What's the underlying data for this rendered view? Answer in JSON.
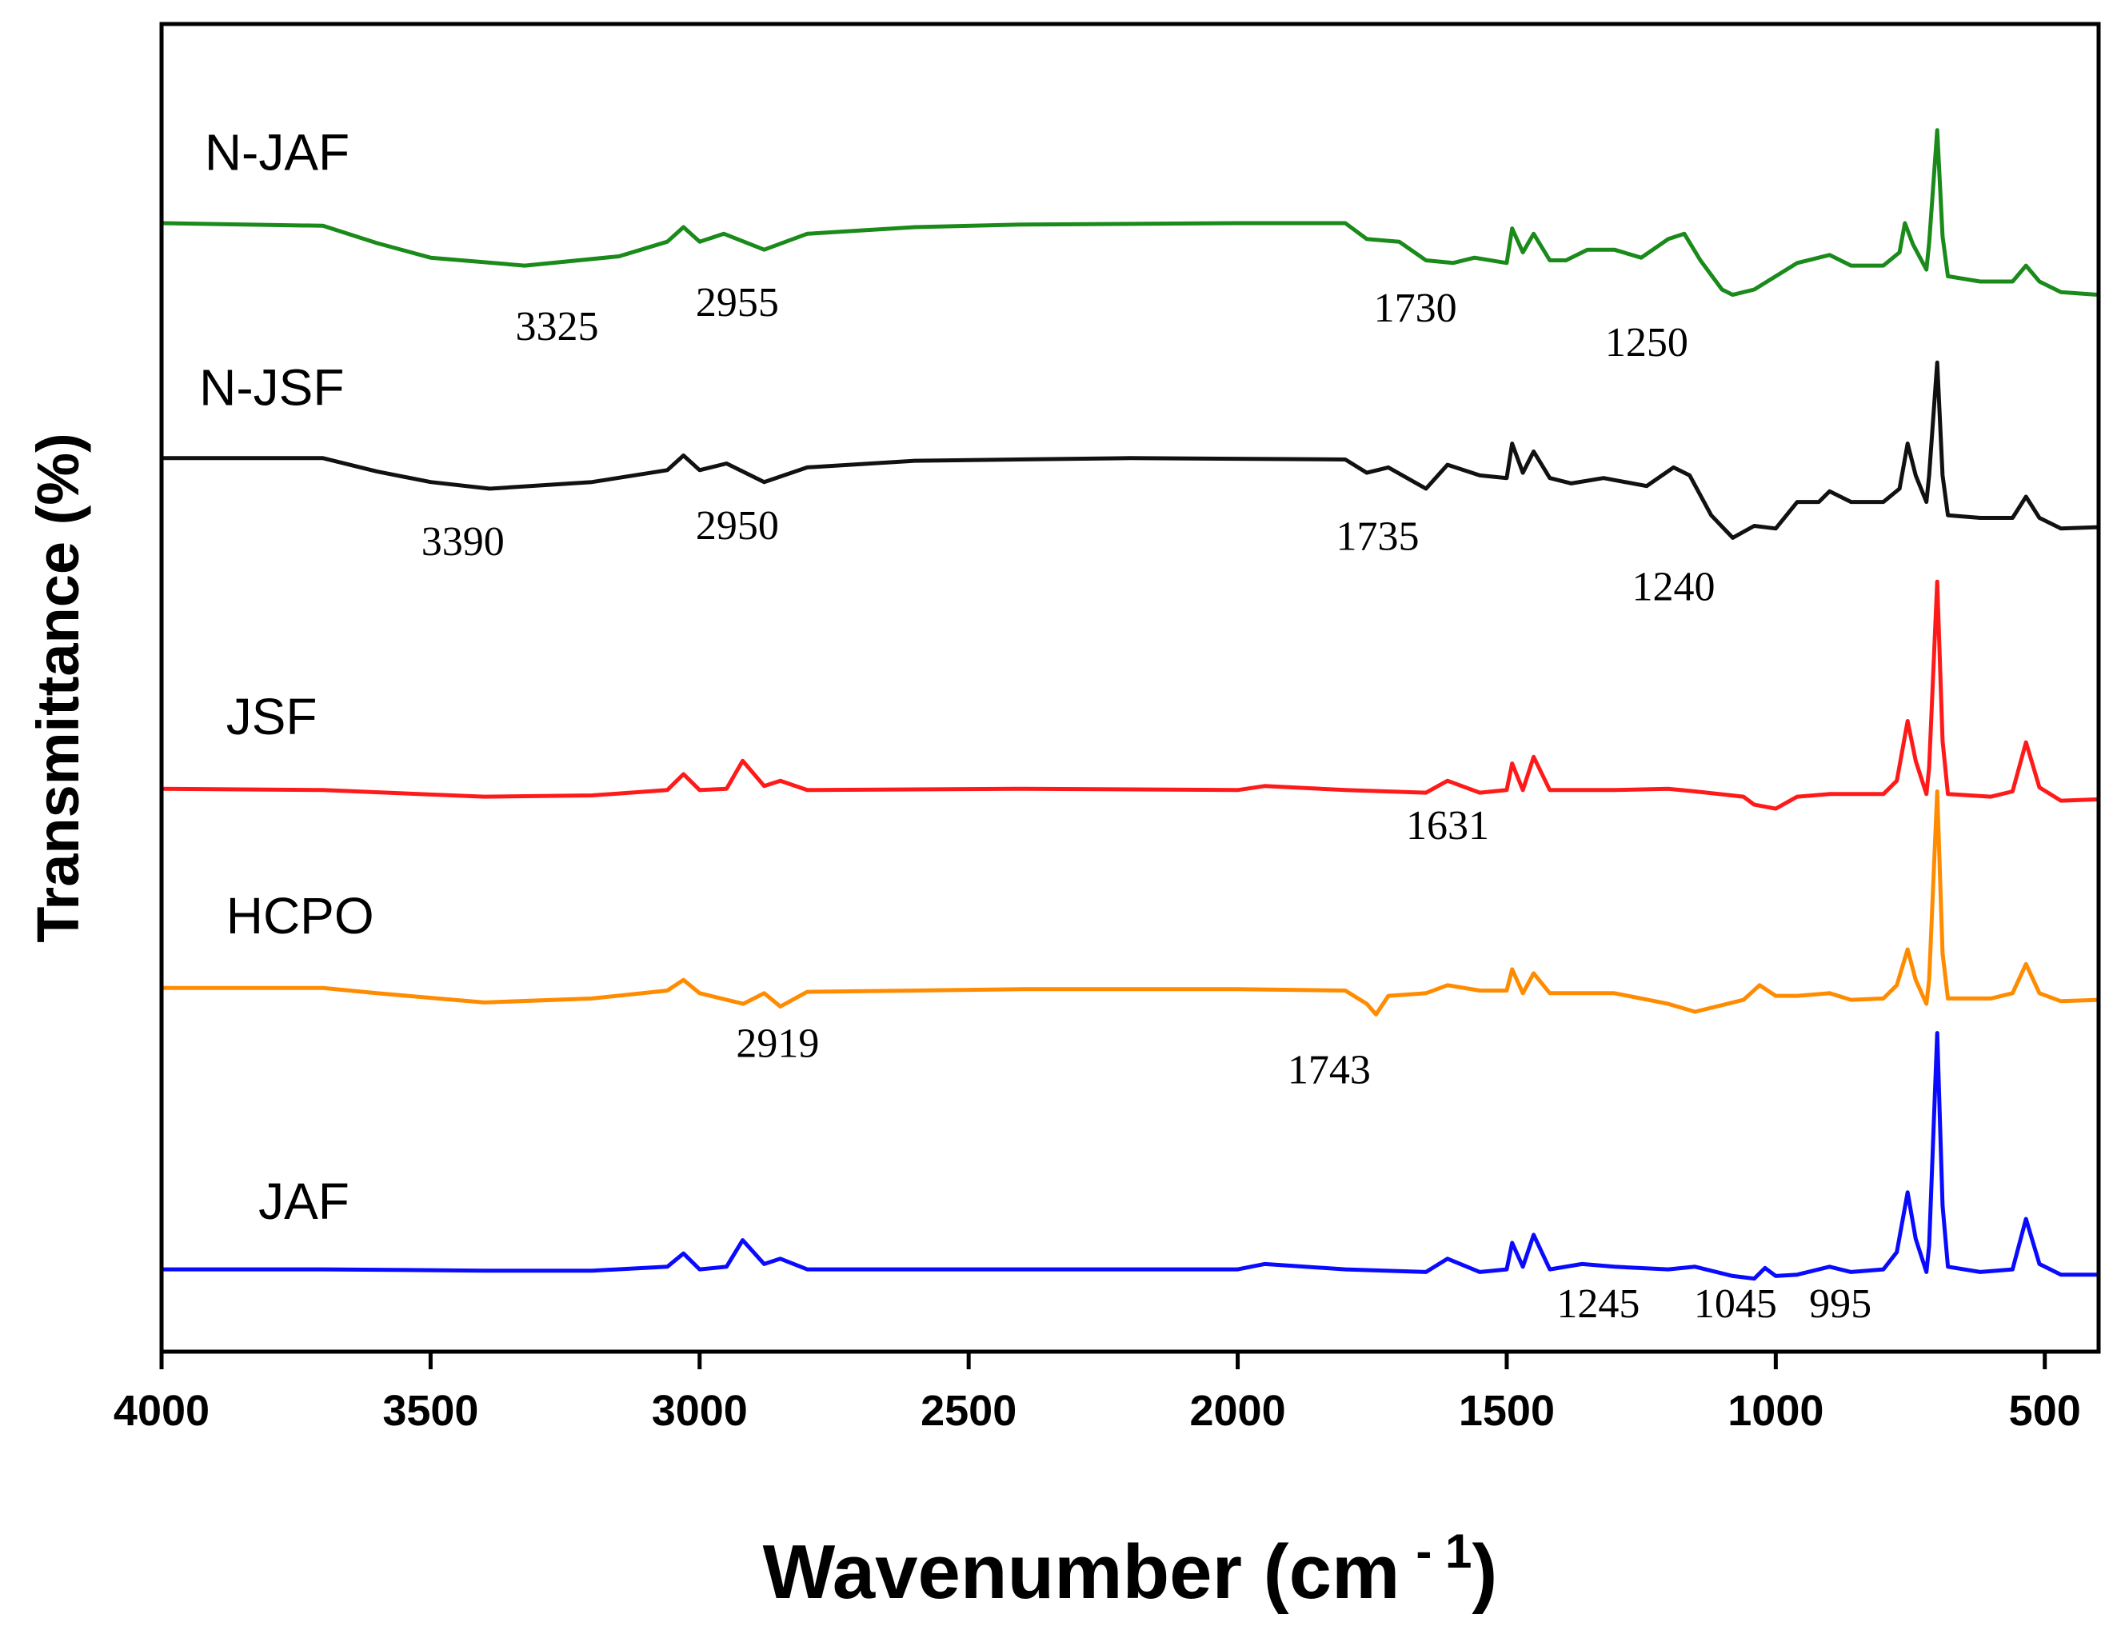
{
  "chart_data": {
    "type": "line",
    "title": "",
    "xlabel": "Wavenumber (cm",
    "xlabel_superscript": "- 1",
    "xlabel_close": ")",
    "ylabel": "Transmittance (%)",
    "xlim": [
      4000,
      400
    ],
    "x_reversed": true,
    "xticks": [
      4000,
      3500,
      3000,
      2500,
      2000,
      1500,
      1000,
      500
    ],
    "yticks_visible": false,
    "grid": false,
    "legend": "inline labels",
    "series": [
      {
        "name": "N-JAF",
        "color": "#1a8a1a",
        "baseline": 0.845,
        "points": [
          [
            4000,
            0.85
          ],
          [
            3700,
            0.848
          ],
          [
            3600,
            0.835
          ],
          [
            3500,
            0.824
          ],
          [
            3325,
            0.818
          ],
          [
            3150,
            0.825
          ],
          [
            3060,
            0.836
          ],
          [
            3030,
            0.847
          ],
          [
            3000,
            0.836
          ],
          [
            2955,
            0.842
          ],
          [
            2880,
            0.83
          ],
          [
            2800,
            0.842
          ],
          [
            2600,
            0.847
          ],
          [
            2400,
            0.849
          ],
          [
            2000,
            0.85
          ],
          [
            1800,
            0.85
          ],
          [
            1760,
            0.838
          ],
          [
            1700,
            0.836
          ],
          [
            1650,
            0.822
          ],
          [
            1600,
            0.82
          ],
          [
            1560,
            0.824
          ],
          [
            1500,
            0.82
          ],
          [
            1490,
            0.846
          ],
          [
            1470,
            0.828
          ],
          [
            1450,
            0.842
          ],
          [
            1420,
            0.822
          ],
          [
            1390,
            0.822
          ],
          [
            1350,
            0.83
          ],
          [
            1300,
            0.83
          ],
          [
            1250,
            0.824
          ],
          [
            1200,
            0.838
          ],
          [
            1170,
            0.842
          ],
          [
            1140,
            0.822
          ],
          [
            1100,
            0.8
          ],
          [
            1080,
            0.796
          ],
          [
            1040,
            0.8
          ],
          [
            1000,
            0.81
          ],
          [
            960,
            0.82
          ],
          [
            900,
            0.826
          ],
          [
            860,
            0.818
          ],
          [
            800,
            0.818
          ],
          [
            770,
            0.828
          ],
          [
            760,
            0.85
          ],
          [
            745,
            0.834
          ],
          [
            720,
            0.815
          ],
          [
            715,
            0.835
          ],
          [
            700,
            0.92
          ],
          [
            690,
            0.84
          ],
          [
            680,
            0.81
          ],
          [
            620,
            0.806
          ],
          [
            560,
            0.806
          ],
          [
            535,
            0.818
          ],
          [
            510,
            0.806
          ],
          [
            470,
            0.798
          ],
          [
            400,
            0.796
          ]
        ]
      },
      {
        "name": "N-JSF",
        "color": "#111111",
        "baseline": 0.668,
        "points": [
          [
            4000,
            0.673
          ],
          [
            3700,
            0.673
          ],
          [
            3600,
            0.663
          ],
          [
            3500,
            0.655
          ],
          [
            3390,
            0.65
          ],
          [
            3200,
            0.655
          ],
          [
            3060,
            0.664
          ],
          [
            3030,
            0.675
          ],
          [
            3000,
            0.664
          ],
          [
            2950,
            0.669
          ],
          [
            2880,
            0.655
          ],
          [
            2800,
            0.666
          ],
          [
            2600,
            0.671
          ],
          [
            2200,
            0.673
          ],
          [
            1800,
            0.672
          ],
          [
            1760,
            0.662
          ],
          [
            1720,
            0.666
          ],
          [
            1650,
            0.65
          ],
          [
            1610,
            0.668
          ],
          [
            1550,
            0.66
          ],
          [
            1500,
            0.658
          ],
          [
            1490,
            0.684
          ],
          [
            1470,
            0.662
          ],
          [
            1450,
            0.678
          ],
          [
            1420,
            0.658
          ],
          [
            1380,
            0.654
          ],
          [
            1320,
            0.658
          ],
          [
            1240,
            0.652
          ],
          [
            1190,
            0.666
          ],
          [
            1160,
            0.66
          ],
          [
            1120,
            0.63
          ],
          [
            1080,
            0.613
          ],
          [
            1040,
            0.622
          ],
          [
            1000,
            0.62
          ],
          [
            960,
            0.64
          ],
          [
            920,
            0.64
          ],
          [
            900,
            0.648
          ],
          [
            860,
            0.64
          ],
          [
            800,
            0.64
          ],
          [
            770,
            0.65
          ],
          [
            755,
            0.684
          ],
          [
            740,
            0.66
          ],
          [
            720,
            0.64
          ],
          [
            715,
            0.66
          ],
          [
            700,
            0.745
          ],
          [
            690,
            0.66
          ],
          [
            680,
            0.63
          ],
          [
            620,
            0.628
          ],
          [
            560,
            0.628
          ],
          [
            535,
            0.644
          ],
          [
            510,
            0.628
          ],
          [
            470,
            0.62
          ],
          [
            400,
            0.621
          ]
        ]
      },
      {
        "name": "JSF",
        "color": "#ff1a1a",
        "baseline": 0.423,
        "points": [
          [
            4000,
            0.424
          ],
          [
            3700,
            0.423
          ],
          [
            3400,
            0.418
          ],
          [
            3200,
            0.419
          ],
          [
            3060,
            0.423
          ],
          [
            3030,
            0.435
          ],
          [
            3000,
            0.423
          ],
          [
            2950,
            0.424
          ],
          [
            2920,
            0.445
          ],
          [
            2880,
            0.426
          ],
          [
            2850,
            0.43
          ],
          [
            2800,
            0.423
          ],
          [
            2400,
            0.424
          ],
          [
            2000,
            0.423
          ],
          [
            1950,
            0.426
          ],
          [
            1800,
            0.423
          ],
          [
            1650,
            0.421
          ],
          [
            1610,
            0.43
          ],
          [
            1550,
            0.421
          ],
          [
            1500,
            0.423
          ],
          [
            1490,
            0.443
          ],
          [
            1470,
            0.423
          ],
          [
            1450,
            0.448
          ],
          [
            1420,
            0.423
          ],
          [
            1300,
            0.423
          ],
          [
            1200,
            0.424
          ],
          [
            1150,
            0.422
          ],
          [
            1060,
            0.418
          ],
          [
            1040,
            0.412
          ],
          [
            1000,
            0.409
          ],
          [
            960,
            0.418
          ],
          [
            900,
            0.42
          ],
          [
            860,
            0.42
          ],
          [
            800,
            0.42
          ],
          [
            775,
            0.43
          ],
          [
            755,
            0.475
          ],
          [
            740,
            0.445
          ],
          [
            720,
            0.42
          ],
          [
            715,
            0.44
          ],
          [
            700,
            0.58
          ],
          [
            690,
            0.46
          ],
          [
            680,
            0.42
          ],
          [
            600,
            0.418
          ],
          [
            560,
            0.422
          ],
          [
            535,
            0.459
          ],
          [
            510,
            0.425
          ],
          [
            470,
            0.415
          ],
          [
            400,
            0.416
          ]
        ]
      },
      {
        "name": "HCPO",
        "color": "#ff8c00",
        "baseline": 0.272,
        "points": [
          [
            4000,
            0.274
          ],
          [
            3700,
            0.274
          ],
          [
            3600,
            0.27
          ],
          [
            3400,
            0.263
          ],
          [
            3200,
            0.266
          ],
          [
            3060,
            0.272
          ],
          [
            3030,
            0.28
          ],
          [
            3000,
            0.27
          ],
          [
            2919,
            0.262
          ],
          [
            2880,
            0.27
          ],
          [
            2850,
            0.26
          ],
          [
            2800,
            0.271
          ],
          [
            2400,
            0.273
          ],
          [
            2000,
            0.273
          ],
          [
            1800,
            0.272
          ],
          [
            1760,
            0.262
          ],
          [
            1743,
            0.254
          ],
          [
            1720,
            0.268
          ],
          [
            1650,
            0.27
          ],
          [
            1610,
            0.276
          ],
          [
            1550,
            0.272
          ],
          [
            1500,
            0.272
          ],
          [
            1490,
            0.288
          ],
          [
            1470,
            0.27
          ],
          [
            1450,
            0.285
          ],
          [
            1420,
            0.27
          ],
          [
            1300,
            0.27
          ],
          [
            1200,
            0.262
          ],
          [
            1150,
            0.256
          ],
          [
            1060,
            0.265
          ],
          [
            1030,
            0.276
          ],
          [
            1000,
            0.268
          ],
          [
            960,
            0.268
          ],
          [
            900,
            0.27
          ],
          [
            860,
            0.265
          ],
          [
            800,
            0.266
          ],
          [
            775,
            0.276
          ],
          [
            755,
            0.303
          ],
          [
            740,
            0.28
          ],
          [
            720,
            0.262
          ],
          [
            715,
            0.28
          ],
          [
            700,
            0.422
          ],
          [
            690,
            0.3
          ],
          [
            680,
            0.266
          ],
          [
            600,
            0.266
          ],
          [
            560,
            0.27
          ],
          [
            535,
            0.292
          ],
          [
            510,
            0.27
          ],
          [
            470,
            0.264
          ],
          [
            400,
            0.265
          ]
        ]
      },
      {
        "name": "JAF",
        "color": "#0a0aff",
        "baseline": 0.061,
        "points": [
          [
            4000,
            0.062
          ],
          [
            3700,
            0.062
          ],
          [
            3400,
            0.061
          ],
          [
            3200,
            0.061
          ],
          [
            3060,
            0.064
          ],
          [
            3030,
            0.074
          ],
          [
            3000,
            0.062
          ],
          [
            2950,
            0.064
          ],
          [
            2920,
            0.084
          ],
          [
            2880,
            0.066
          ],
          [
            2850,
            0.07
          ],
          [
            2800,
            0.062
          ],
          [
            2400,
            0.062
          ],
          [
            2000,
            0.062
          ],
          [
            1950,
            0.066
          ],
          [
            1800,
            0.062
          ],
          [
            1650,
            0.06
          ],
          [
            1610,
            0.07
          ],
          [
            1550,
            0.06
          ],
          [
            1500,
            0.062
          ],
          [
            1490,
            0.082
          ],
          [
            1470,
            0.064
          ],
          [
            1450,
            0.088
          ],
          [
            1420,
            0.062
          ],
          [
            1360,
            0.066
          ],
          [
            1300,
            0.064
          ],
          [
            1200,
            0.062
          ],
          [
            1150,
            0.064
          ],
          [
            1080,
            0.057
          ],
          [
            1060,
            0.056
          ],
          [
            1040,
            0.055
          ],
          [
            1020,
            0.063
          ],
          [
            1000,
            0.057
          ],
          [
            960,
            0.058
          ],
          [
            900,
            0.064
          ],
          [
            860,
            0.06
          ],
          [
            800,
            0.062
          ],
          [
            775,
            0.075
          ],
          [
            755,
            0.12
          ],
          [
            740,
            0.085
          ],
          [
            720,
            0.06
          ],
          [
            715,
            0.08
          ],
          [
            700,
            0.24
          ],
          [
            690,
            0.11
          ],
          [
            680,
            0.064
          ],
          [
            620,
            0.06
          ],
          [
            560,
            0.062
          ],
          [
            535,
            0.1
          ],
          [
            510,
            0.066
          ],
          [
            470,
            0.058
          ],
          [
            400,
            0.058
          ]
        ]
      }
    ],
    "series_labels": [
      {
        "text": "N-JAF",
        "x": 3920,
        "y": 0.89
      },
      {
        "text": "N-JSF",
        "x": 3930,
        "y": 0.713
      },
      {
        "text": "JSF",
        "x": 3880,
        "y": 0.465
      },
      {
        "text": "HCPO",
        "x": 3880,
        "y": 0.315
      },
      {
        "text": "JAF",
        "x": 3820,
        "y": 0.1
      }
    ],
    "annotations": [
      {
        "text": "3325",
        "x": 3265,
        "y": 0.762
      },
      {
        "text": "2955",
        "x": 2930,
        "y": 0.78
      },
      {
        "text": "1730",
        "x": 1670,
        "y": 0.776
      },
      {
        "text": "1250",
        "x": 1240,
        "y": 0.75
      },
      {
        "text": "3390",
        "x": 3440,
        "y": 0.6
      },
      {
        "text": "2950",
        "x": 2930,
        "y": 0.612
      },
      {
        "text": "1735",
        "x": 1740,
        "y": 0.604
      },
      {
        "text": "1240",
        "x": 1190,
        "y": 0.566
      },
      {
        "text": "1631",
        "x": 1610,
        "y": 0.386
      },
      {
        "text": "2919",
        "x": 2855,
        "y": 0.222
      },
      {
        "text": "1743",
        "x": 1830,
        "y": 0.202
      },
      {
        "text": "1245",
        "x": 1330,
        "y": 0.026
      },
      {
        "text": "1045",
        "x": 1075,
        "y": 0.026
      },
      {
        "text": "995",
        "x": 880,
        "y": 0.026
      }
    ],
    "ylim": [
      0,
      1
    ]
  }
}
